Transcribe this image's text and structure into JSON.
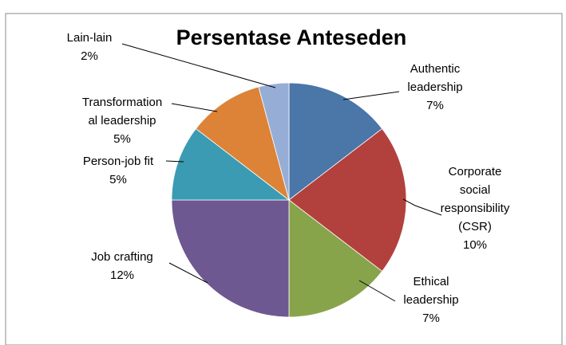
{
  "chart_data": {
    "type": "pie",
    "title": "Persentase Anteseden",
    "total_percent_basis": 43,
    "slices": [
      {
        "label_lines": [
          "Authentic",
          "leadership",
          "7%"
        ],
        "value": 7,
        "color": "#4a76a8"
      },
      {
        "label_lines": [
          "Corporate",
          "social",
          "responsibility",
          "(CSR)",
          "10%"
        ],
        "value": 10,
        "color": "#b2413e"
      },
      {
        "label_lines": [
          "Ethical",
          "leadership",
          "7%"
        ],
        "value": 7,
        "color": "#88a44b"
      },
      {
        "label_lines": [
          "Job crafting",
          "12%"
        ],
        "value": 12,
        "color": "#6e5891"
      },
      {
        "label_lines": [
          "Person-job fit",
          "5%"
        ],
        "value": 5,
        "color": "#3b9bb2"
      },
      {
        "label_lines": [
          "Transformation",
          "al leadership",
          "5%"
        ],
        "value": 5,
        "color": "#dc8338"
      },
      {
        "label_lines": [
          "Lain-lain",
          "2%"
        ],
        "value": 2,
        "color": "#96aed6"
      }
    ]
  }
}
